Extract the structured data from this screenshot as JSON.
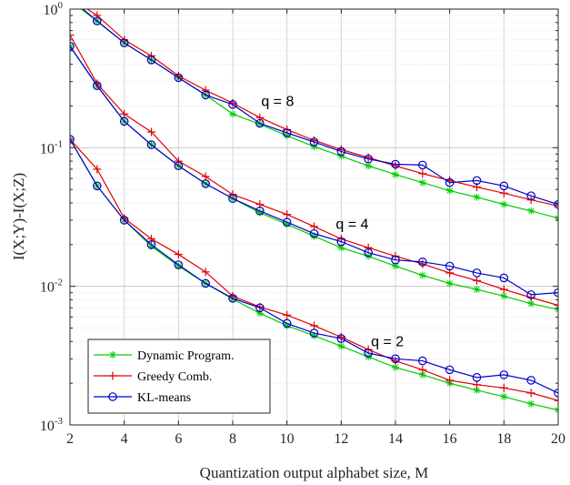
{
  "chart_data": {
    "type": "line",
    "xlabel": "Quantization output alphabet size, M",
    "ylabel": "I(X;Y)-I(X;Z)",
    "xlim": [
      2,
      20
    ],
    "ylim": [
      0.001,
      1
    ],
    "yscale": "log",
    "grid": true,
    "legend_position": "bottom-left",
    "x_ticks": [
      "2",
      "4",
      "6",
      "8",
      "10",
      "12",
      "14",
      "16",
      "18",
      "20"
    ],
    "y_ticks": [
      {
        "base": "10",
        "exp": "-3",
        "value": 0.001
      },
      {
        "base": "10",
        "exp": "-2",
        "value": 0.01
      },
      {
        "base": "10",
        "exp": "-1",
        "value": 0.1
      },
      {
        "base": "10",
        "exp": "0",
        "value": 1
      }
    ],
    "x": [
      2,
      3,
      4,
      5,
      6,
      7,
      8,
      9,
      10,
      11,
      12,
      13,
      14,
      15,
      16,
      17,
      18,
      19,
      20
    ],
    "series": [
      {
        "name": "Dynamic Program.",
        "color": "#00cc00",
        "marker": "asterisk",
        "group": "q8",
        "values": [
          1.15,
          0.82,
          0.57,
          0.43,
          0.32,
          0.24,
          0.175,
          0.148,
          0.122,
          0.102,
          0.087,
          0.074,
          0.064,
          0.056,
          0.049,
          0.044,
          0.039,
          0.035,
          0.031
        ]
      },
      {
        "name": "Greedy Comb.",
        "color": "#e00000",
        "marker": "plus",
        "group": "q8",
        "values": [
          1.2,
          0.9,
          0.6,
          0.46,
          0.33,
          0.26,
          0.21,
          0.165,
          0.135,
          0.113,
          0.097,
          0.085,
          0.074,
          0.065,
          0.058,
          0.052,
          0.047,
          0.042,
          0.038
        ]
      },
      {
        "name": "KL-means",
        "color": "#0000cc",
        "marker": "circle",
        "group": "q8",
        "values": [
          1.2,
          0.82,
          0.57,
          0.43,
          0.32,
          0.24,
          0.205,
          0.15,
          0.128,
          0.11,
          0.094,
          0.083,
          0.076,
          0.075,
          0.056,
          0.058,
          0.053,
          0.045,
          0.039
        ]
      },
      {
        "name": "Dynamic Program.",
        "color": "#00cc00",
        "marker": "asterisk",
        "group": "q4",
        "values": [
          0.54,
          0.28,
          0.155,
          0.105,
          0.074,
          0.055,
          0.043,
          0.034,
          0.028,
          0.023,
          0.019,
          0.0165,
          0.014,
          0.012,
          0.0105,
          0.0095,
          0.0085,
          0.0075,
          0.0068
        ]
      },
      {
        "name": "Greedy Comb.",
        "color": "#e00000",
        "marker": "plus",
        "group": "q4",
        "values": [
          0.65,
          0.29,
          0.175,
          0.13,
          0.08,
          0.062,
          0.046,
          0.039,
          0.033,
          0.027,
          0.022,
          0.019,
          0.0165,
          0.0145,
          0.0125,
          0.011,
          0.0095,
          0.0083,
          0.0073
        ]
      },
      {
        "name": "KL-means",
        "color": "#0000cc",
        "marker": "circle",
        "group": "q4",
        "values": [
          0.54,
          0.28,
          0.155,
          0.105,
          0.074,
          0.055,
          0.043,
          0.035,
          0.029,
          0.024,
          0.021,
          0.0175,
          0.0155,
          0.015,
          0.014,
          0.0125,
          0.0115,
          0.0087,
          0.009
        ]
      },
      {
        "name": "Dynamic Program.",
        "color": "#00cc00",
        "marker": "asterisk",
        "group": "q2",
        "values": [
          0.115,
          0.053,
          0.03,
          0.0195,
          0.014,
          0.0105,
          0.0081,
          0.0064,
          0.0052,
          0.0044,
          0.0037,
          0.0031,
          0.0026,
          0.0023,
          0.002,
          0.00178,
          0.0016,
          0.00142,
          0.00128
        ]
      },
      {
        "name": "Greedy Comb.",
        "color": "#e00000",
        "marker": "plus",
        "group": "q2",
        "values": [
          0.115,
          0.07,
          0.031,
          0.022,
          0.017,
          0.0127,
          0.0085,
          0.0071,
          0.0062,
          0.0052,
          0.0043,
          0.0035,
          0.0029,
          0.0025,
          0.0021,
          0.00195,
          0.00185,
          0.0017,
          0.0015
        ]
      },
      {
        "name": "KL-means",
        "color": "#0000cc",
        "marker": "circle",
        "group": "q2",
        "values": [
          0.115,
          0.053,
          0.03,
          0.02,
          0.0143,
          0.0105,
          0.0082,
          0.007,
          0.0054,
          0.0046,
          0.0042,
          0.0033,
          0.003,
          0.0029,
          0.0025,
          0.0022,
          0.0023,
          0.0021,
          0.0017
        ]
      }
    ],
    "annotations": [
      {
        "text": "q = 8",
        "x": 9.05,
        "y": 0.2
      },
      {
        "text": "q = 4",
        "x": 11.8,
        "y": 0.026
      },
      {
        "text": "q = 2",
        "x": 13.1,
        "y": 0.0037
      }
    ],
    "legend": [
      {
        "label": "Dynamic Program.",
        "color": "#00cc00",
        "marker": "asterisk"
      },
      {
        "label": "Greedy Comb.",
        "color": "#e00000",
        "marker": "plus"
      },
      {
        "label": "KL-means",
        "color": "#0000cc",
        "marker": "circle"
      }
    ]
  }
}
